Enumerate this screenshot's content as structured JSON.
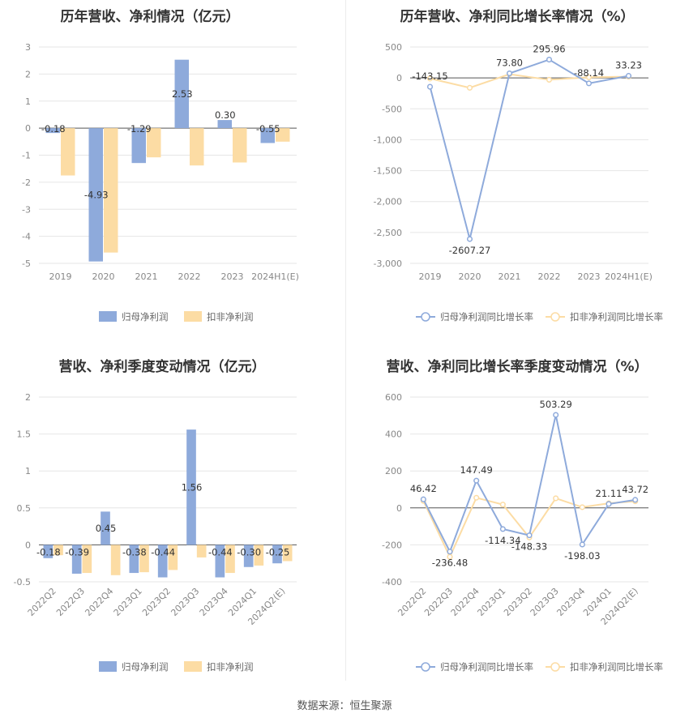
{
  "footer": "数据来源：恒生聚源",
  "colors": {
    "primary": "#8eaadb",
    "secondary": "#fcdca4"
  },
  "chart_data": [
    {
      "type": "bar",
      "title": "历年营收、净利情况（亿元）",
      "categories": [
        "2019",
        "2020",
        "2021",
        "2022",
        "2023",
        "2024H1(E)"
      ],
      "series": [
        {
          "name": "归母净利润",
          "values": [
            -0.18,
            -4.93,
            -1.29,
            2.53,
            0.3,
            -0.55
          ],
          "labels": [
            "-0.18",
            "-4.93",
            "-1.29",
            "2.53",
            "0.30",
            "-0.55"
          ]
        },
        {
          "name": "扣非净利润",
          "values": [
            -1.75,
            -4.6,
            -1.08,
            -1.38,
            -1.27,
            -0.5
          ]
        }
      ],
      "yticks": [
        "3",
        "2",
        "1",
        "0",
        "-1",
        "-2",
        "-3",
        "-4",
        "-5"
      ],
      "ylim": [
        -5,
        3
      ],
      "grid": true,
      "legend": "bottom"
    },
    {
      "type": "line",
      "title": "历年营收、净利同比增长率情况（%）",
      "categories": [
        "2019",
        "2020",
        "2021",
        "2022",
        "2023",
        "2024H1(E)"
      ],
      "series": [
        {
          "name": "归母净利润同比增长率",
          "values": [
            -143.15,
            -2607.27,
            73.8,
            295.96,
            -88.14,
            33.23
          ],
          "labels": [
            "-143.15",
            "-2607.27",
            "73.80",
            "295.96",
            "-88.14",
            "33.23"
          ]
        },
        {
          "name": "扣非净利润同比增长率",
          "values": [
            -10,
            -160,
            60,
            -30,
            10,
            20
          ]
        }
      ],
      "yticks": [
        "500",
        "0",
        "-500",
        "-1,000",
        "-1,500",
        "-2,000",
        "-2,500",
        "-3,000"
      ],
      "ylim": [
        -3000,
        500
      ],
      "grid": true,
      "legend": "bottom"
    },
    {
      "type": "bar",
      "title": "营收、净利季度变动情况（亿元）",
      "categories": [
        "2022Q2",
        "2022Q3",
        "2022Q4",
        "2023Q1",
        "2023Q2",
        "2023Q3",
        "2023Q4",
        "2024Q1",
        "2024Q2(E)"
      ],
      "series": [
        {
          "name": "归母净利润",
          "values": [
            -0.18,
            -0.39,
            0.45,
            -0.38,
            -0.44,
            1.56,
            -0.44,
            -0.3,
            -0.25
          ],
          "labels": [
            "-0.18",
            "-0.39",
            "0.45",
            "-0.38",
            "-0.44",
            "1.56",
            "-0.44",
            "-0.30",
            "-0.25"
          ]
        },
        {
          "name": "扣非净利润",
          "values": [
            -0.14,
            -0.38,
            -0.41,
            -0.37,
            -0.34,
            -0.17,
            -0.38,
            -0.28,
            -0.22
          ]
        }
      ],
      "yticks": [
        "2",
        "1.5",
        "1",
        "0.5",
        "0",
        "-0.5"
      ],
      "ylim": [
        -0.5,
        2
      ],
      "grid": true,
      "legend": "bottom"
    },
    {
      "type": "line",
      "title": "营收、净利同比增长率季度变动情况（%）",
      "categories": [
        "2022Q2",
        "2022Q3",
        "2022Q4",
        "2023Q1",
        "2023Q2",
        "2023Q3",
        "2023Q4",
        "2024Q1",
        "2024Q2(E)"
      ],
      "series": [
        {
          "name": "归母净利润同比增长率",
          "values": [
            46.42,
            -236.48,
            147.49,
            -114.34,
            -148.33,
            503.29,
            -198.03,
            21.11,
            43.72
          ],
          "labels": [
            "46.42",
            "-236.48",
            "147.49",
            "-114.34",
            "-148.33",
            "503.29",
            "-198.03",
            "21.11",
            "43.72"
          ]
        },
        {
          "name": "扣非净利润同比增长率",
          "values": [
            38,
            -265,
            55,
            18,
            -160,
            52,
            4,
            25,
            36
          ]
        }
      ],
      "yticks": [
        "600",
        "400",
        "200",
        "0",
        "-200",
        "-400"
      ],
      "ylim": [
        -400,
        600
      ],
      "grid": true,
      "legend": "bottom"
    }
  ]
}
